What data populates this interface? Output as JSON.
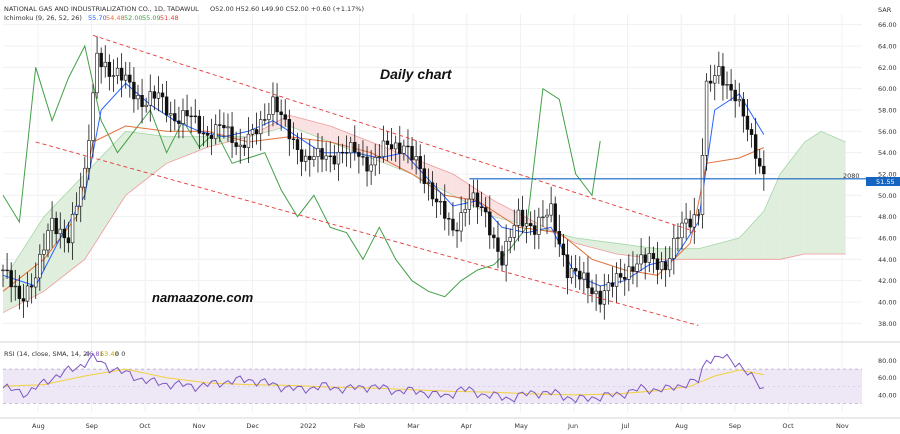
{
  "header": {
    "title_line": "NATIONAL GAS AND INDUSTRIALIZATION CO., 1D, TADAWUL",
    "ohlc": "O52.00 H52.60 L49.90 C52.00 +0.60 (+1.17%)",
    "ichimoku_label": "Ichimoku (9, 26, 52, 26)",
    "ichimoku_values": [
      "55.70",
      "54.48",
      "52.00",
      "55.09",
      "51.48"
    ],
    "rsi_label": "RSI (14, close, SMA, 14, 2)",
    "rsi_values": [
      "46.81",
      "63.48"
    ],
    "rsi_extra": "0 0"
  },
  "annotations": {
    "daily_chart": "Daily chart",
    "brand": "namaazone.com",
    "level_text": "2080",
    "price_tag": "51.55",
    "currency": "SAR"
  },
  "colors": {
    "bg": "#ffffff",
    "candle": "#111111",
    "tenkan": "#2962ff",
    "kijun": "#e0703a",
    "chikou": "#43a047",
    "cloud_bull": "#dfeedd",
    "cloud_bear": "#fbe2e2",
    "channel": "#e53935",
    "hline": "#1565c0",
    "rsi": "#7e57c2",
    "rsi_ma": "#f2d13a",
    "rsi_band": "#ede7f6"
  },
  "chart_data": {
    "type": "candlestick",
    "title": "NATIONAL GAS AND INDUSTRIALIZATION CO., 1D, TADAWUL",
    "y_unit": "SAR",
    "ylim": [
      37,
      67
    ],
    "y_ticks": [
      "66.00",
      "64.00",
      "62.00",
      "60.00",
      "58.00",
      "56.00",
      "54.00",
      "52.00",
      "50.00",
      "48.00",
      "46.00",
      "44.00",
      "42.00",
      "40.00",
      "38.00"
    ],
    "x_labels": [
      "Aug",
      "Sep",
      "Oct",
      "Nov",
      "Dec",
      "2022",
      "Feb",
      "Mar",
      "Apr",
      "May",
      "Jun",
      "Jul",
      "Aug",
      "Sep",
      "Oct",
      "Nov"
    ],
    "price_path": [
      [
        0,
        43.0
      ],
      [
        4,
        40.2
      ],
      [
        8,
        42.5
      ],
      [
        12,
        47.5
      ],
      [
        16,
        46.0
      ],
      [
        20,
        52.0
      ],
      [
        23,
        63.5
      ],
      [
        26,
        61.0
      ],
      [
        30,
        61.5
      ],
      [
        34,
        58.0
      ],
      [
        38,
        60.0
      ],
      [
        42,
        56.5
      ],
      [
        46,
        58.0
      ],
      [
        50,
        55.0
      ],
      [
        54,
        57.0
      ],
      [
        58,
        54.0
      ],
      [
        62,
        56.5
      ],
      [
        66,
        58.5
      ],
      [
        70,
        56.0
      ],
      [
        74,
        53.0
      ],
      [
        78,
        54.0
      ],
      [
        82,
        53.5
      ],
      [
        86,
        54.5
      ],
      [
        90,
        52.5
      ],
      [
        94,
        55.0
      ],
      [
        98,
        54.5
      ],
      [
        102,
        52.5
      ],
      [
        106,
        49.5
      ],
      [
        110,
        46.5
      ],
      [
        114,
        50.0
      ],
      [
        118,
        48.0
      ],
      [
        122,
        44.0
      ],
      [
        126,
        48.0
      ],
      [
        130,
        47.0
      ],
      [
        134,
        48.5
      ],
      [
        138,
        43.0
      ],
      [
        142,
        42.0
      ],
      [
        146,
        40.5
      ],
      [
        150,
        42.0
      ],
      [
        154,
        43.5
      ],
      [
        158,
        44.0
      ],
      [
        162,
        43.5
      ],
      [
        166,
        47.0
      ],
      [
        170,
        48.5
      ],
      [
        172,
        60.0
      ],
      [
        175,
        61.5
      ],
      [
        179,
        59.5
      ],
      [
        183,
        55.0
      ],
      [
        186,
        52.0
      ]
    ],
    "tenkan_path": [
      [
        0,
        42.5
      ],
      [
        8,
        41.5
      ],
      [
        14,
        46.0
      ],
      [
        20,
        50.0
      ],
      [
        24,
        58.0
      ],
      [
        30,
        60.5
      ],
      [
        36,
        58.5
      ],
      [
        42,
        57.0
      ],
      [
        48,
        56.0
      ],
      [
        54,
        55.5
      ],
      [
        60,
        56.0
      ],
      [
        66,
        57.0
      ],
      [
        72,
        55.5
      ],
      [
        78,
        54.0
      ],
      [
        86,
        54.0
      ],
      [
        92,
        53.5
      ],
      [
        98,
        54.0
      ],
      [
        104,
        51.5
      ],
      [
        110,
        49.0
      ],
      [
        116,
        49.5
      ],
      [
        122,
        47.0
      ],
      [
        128,
        46.5
      ],
      [
        134,
        47.0
      ],
      [
        140,
        42.5
      ],
      [
        146,
        41.5
      ],
      [
        152,
        42.0
      ],
      [
        158,
        43.5
      ],
      [
        164,
        44.0
      ],
      [
        170,
        47.5
      ],
      [
        174,
        58.0
      ],
      [
        180,
        59.5
      ],
      [
        186,
        55.7
      ]
    ],
    "kijun_path": [
      [
        0,
        41.0
      ],
      [
        10,
        44.0
      ],
      [
        18,
        48.0
      ],
      [
        22,
        55.0
      ],
      [
        30,
        56.5
      ],
      [
        40,
        56.0
      ],
      [
        50,
        56.0
      ],
      [
        60,
        55.0
      ],
      [
        70,
        55.5
      ],
      [
        80,
        55.0
      ],
      [
        90,
        54.0
      ],
      [
        100,
        52.0
      ],
      [
        108,
        50.0
      ],
      [
        116,
        49.5
      ],
      [
        126,
        47.0
      ],
      [
        136,
        46.5
      ],
      [
        144,
        44.0
      ],
      [
        152,
        43.0
      ],
      [
        160,
        42.5
      ],
      [
        168,
        45.5
      ],
      [
        172,
        53.0
      ],
      [
        180,
        53.5
      ],
      [
        186,
        54.48
      ]
    ],
    "chikou_path": [
      [
        0,
        50.0
      ],
      [
        4,
        47.5
      ],
      [
        8,
        62.0
      ],
      [
        12,
        57.0
      ],
      [
        16,
        61.0
      ],
      [
        20,
        64.0
      ],
      [
        24,
        57.0
      ],
      [
        28,
        54.0
      ],
      [
        32,
        56.0
      ],
      [
        36,
        58.0
      ],
      [
        40,
        54.0
      ],
      [
        44,
        57.0
      ],
      [
        48,
        54.5
      ],
      [
        52,
        56.0
      ],
      [
        56,
        53.0
      ],
      [
        60,
        53.5
      ],
      [
        64,
        54.0
      ],
      [
        68,
        50.5
      ],
      [
        72,
        48.0
      ],
      [
        76,
        50.0
      ],
      [
        80,
        47.0
      ],
      [
        84,
        46.5
      ],
      [
        88,
        44.0
      ],
      [
        92,
        47.0
      ],
      [
        96,
        44.0
      ],
      [
        100,
        42.0
      ],
      [
        104,
        41.0
      ],
      [
        108,
        40.5
      ],
      [
        112,
        42.0
      ],
      [
        116,
        43.0
      ],
      [
        120,
        43.5
      ],
      [
        124,
        45.0
      ],
      [
        128,
        47.0
      ],
      [
        132,
        60.0
      ],
      [
        136,
        59.0
      ],
      [
        140,
        52.0
      ],
      [
        144,
        50.0
      ],
      [
        146,
        55.09
      ]
    ],
    "cloud_a": [
      [
        0,
        42.0
      ],
      [
        10,
        48.0
      ],
      [
        20,
        52.0
      ],
      [
        30,
        56.0
      ],
      [
        40,
        55.5
      ],
      [
        50,
        55.5
      ],
      [
        60,
        55.5
      ],
      [
        70,
        56.5
      ],
      [
        80,
        55.0
      ],
      [
        90,
        53.5
      ],
      [
        100,
        52.0
      ],
      [
        110,
        50.0
      ],
      [
        120,
        48.0
      ],
      [
        130,
        47.0
      ],
      [
        140,
        46.0
      ],
      [
        150,
        45.5
      ],
      [
        160,
        45.0
      ],
      [
        170,
        45.0
      ],
      [
        180,
        46.0
      ],
      [
        186,
        48.5
      ],
      [
        190,
        52.0
      ],
      [
        196,
        55.0
      ],
      [
        200,
        56.0
      ],
      [
        206,
        55.0
      ]
    ],
    "cloud_b": [
      [
        0,
        39.0
      ],
      [
        10,
        41.0
      ],
      [
        20,
        44.0
      ],
      [
        30,
        50.0
      ],
      [
        40,
        53.0
      ],
      [
        50,
        54.5
      ],
      [
        60,
        55.5
      ],
      [
        70,
        57.5
      ],
      [
        80,
        56.5
      ],
      [
        90,
        55.0
      ],
      [
        100,
        53.5
      ],
      [
        110,
        52.0
      ],
      [
        120,
        49.5
      ],
      [
        130,
        47.5
      ],
      [
        140,
        45.5
      ],
      [
        150,
        44.5
      ],
      [
        160,
        44.0
      ],
      [
        170,
        44.0
      ],
      [
        180,
        44.0
      ],
      [
        186,
        44.0
      ],
      [
        190,
        44.0
      ],
      [
        196,
        44.5
      ],
      [
        200,
        44.5
      ],
      [
        206,
        44.5
      ]
    ],
    "channel_upper": [
      [
        22,
        65.0
      ],
      [
        170,
        46.5
      ]
    ],
    "channel_lower": [
      [
        8,
        55.0
      ],
      [
        170,
        37.8
      ]
    ],
    "horizontal_level": {
      "x_start": 114,
      "x_end": 206,
      "value": 51.55,
      "label": "2080"
    },
    "rsi": {
      "label": "RSI (14, close, SMA, 14, 2)",
      "ylim": [
        20,
        90
      ],
      "y_ticks": [
        "80.00",
        "60.00",
        "40.00"
      ],
      "band": [
        30,
        70
      ],
      "rsi_path": [
        [
          0,
          48
        ],
        [
          6,
          42
        ],
        [
          12,
          60
        ],
        [
          18,
          72
        ],
        [
          22,
          83
        ],
        [
          26,
          72
        ],
        [
          30,
          65
        ],
        [
          36,
          55
        ],
        [
          42,
          52
        ],
        [
          48,
          50
        ],
        [
          54,
          55
        ],
        [
          60,
          58
        ],
        [
          66,
          52
        ],
        [
          72,
          46
        ],
        [
          78,
          50
        ],
        [
          84,
          47
        ],
        [
          90,
          50
        ],
        [
          96,
          45
        ],
        [
          102,
          44
        ],
        [
          108,
          38
        ],
        [
          112,
          47
        ],
        [
          118,
          40
        ],
        [
          124,
          36
        ],
        [
          130,
          43
        ],
        [
          136,
          41
        ],
        [
          140,
          34
        ],
        [
          146,
          38
        ],
        [
          150,
          40
        ],
        [
          156,
          47
        ],
        [
          162,
          46
        ],
        [
          166,
          52
        ],
        [
          170,
          56
        ],
        [
          172,
          82
        ],
        [
          176,
          84
        ],
        [
          180,
          76
        ],
        [
          184,
          55
        ],
        [
          186,
          46.81
        ]
      ],
      "ma_path": [
        [
          0,
          50
        ],
        [
          10,
          52
        ],
        [
          20,
          62
        ],
        [
          30,
          70
        ],
        [
          40,
          60
        ],
        [
          50,
          54
        ],
        [
          60,
          52
        ],
        [
          70,
          51
        ],
        [
          80,
          49
        ],
        [
          90,
          48
        ],
        [
          100,
          46
        ],
        [
          110,
          44
        ],
        [
          120,
          43
        ],
        [
          130,
          41
        ],
        [
          140,
          40
        ],
        [
          150,
          41
        ],
        [
          160,
          45
        ],
        [
          168,
          50
        ],
        [
          174,
          62
        ],
        [
          180,
          69
        ],
        [
          186,
          63.48
        ]
      ]
    }
  }
}
